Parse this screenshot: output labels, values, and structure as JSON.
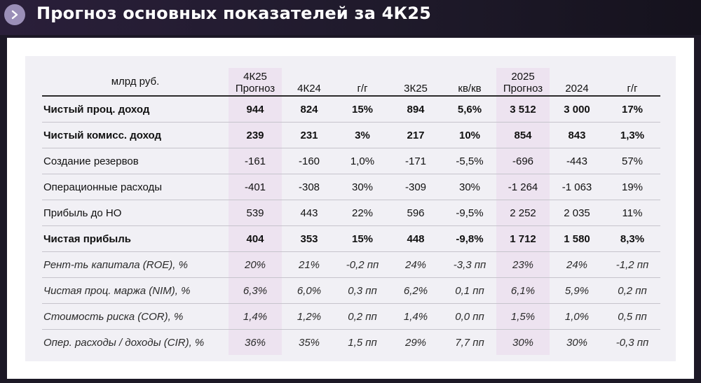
{
  "header": {
    "title": "Прогноз основных показателей за 4К25",
    "icon": "chevron-right-icon",
    "icon_color": "#9b8fb8"
  },
  "colors": {
    "background": "#1c1826",
    "card": "#f1f0f5",
    "highlight_column": "#ede3f0"
  },
  "table": {
    "columns": [
      {
        "label": "млрд руб.",
        "highlight": false
      },
      {
        "label": "4К25 Прогноз",
        "highlight": true
      },
      {
        "label": "4К24",
        "highlight": false
      },
      {
        "label": "г/г",
        "highlight": false
      },
      {
        "label": "3К25",
        "highlight": false
      },
      {
        "label": "кв/кв",
        "highlight": false
      },
      {
        "label": "2025 Прогноз",
        "highlight": true
      },
      {
        "label": "2024",
        "highlight": false
      },
      {
        "label": "г/г",
        "highlight": false
      }
    ],
    "rows": [
      {
        "style": "bold",
        "cells": [
          "Чистый проц. доход",
          "944",
          "824",
          "15%",
          "894",
          "5,6%",
          "3 512",
          "3 000",
          "17%"
        ]
      },
      {
        "style": "bold",
        "cells": [
          "Чистый комисс. доход",
          "239",
          "231",
          "3%",
          "217",
          "10%",
          "854",
          "843",
          "1,3%"
        ]
      },
      {
        "style": "normal",
        "cells": [
          "Создание резервов",
          "-161",
          "-160",
          "1,0%",
          "-171",
          "-5,5%",
          "-696",
          "-443",
          "57%"
        ]
      },
      {
        "style": "normal",
        "cells": [
          "Операционные расходы",
          "-401",
          "-308",
          "30%",
          "-309",
          "30%",
          "-1 264",
          "-1 063",
          "19%"
        ]
      },
      {
        "style": "normal",
        "cells": [
          "Прибыль до НО",
          "539",
          "443",
          "22%",
          "596",
          "-9,5%",
          "2 252",
          "2 035",
          "11%"
        ]
      },
      {
        "style": "bold",
        "cells": [
          "Чистая прибыль",
          "404",
          "353",
          "15%",
          "448",
          "-9,8%",
          "1 712",
          "1 580",
          "8,3%"
        ]
      },
      {
        "style": "italic",
        "cells": [
          "Рент-ть капитала (ROE), %",
          "20%",
          "21%",
          "-0,2 пп",
          "24%",
          "-3,3 пп",
          "23%",
          "24%",
          "-1,2 пп"
        ]
      },
      {
        "style": "italic",
        "cells": [
          "Чистая проц. маржа (NIM), %",
          "6,3%",
          "6,0%",
          "0,3 пп",
          "6,2%",
          "0,1 пп",
          "6,1%",
          "5,9%",
          "0,2 пп"
        ]
      },
      {
        "style": "italic",
        "cells": [
          "Стоимость риска (COR), %",
          "1,4%",
          "1,2%",
          "0,2 пп",
          "1,4%",
          "0,0 пп",
          "1,5%",
          "1,0%",
          "0,5 пп"
        ]
      },
      {
        "style": "italic",
        "cells": [
          "Опер. расходы / доходы (CIR), %",
          "36%",
          "35%",
          "1,5 пп",
          "29%",
          "7,7 пп",
          "30%",
          "30%",
          "-0,3 пп"
        ]
      }
    ]
  }
}
